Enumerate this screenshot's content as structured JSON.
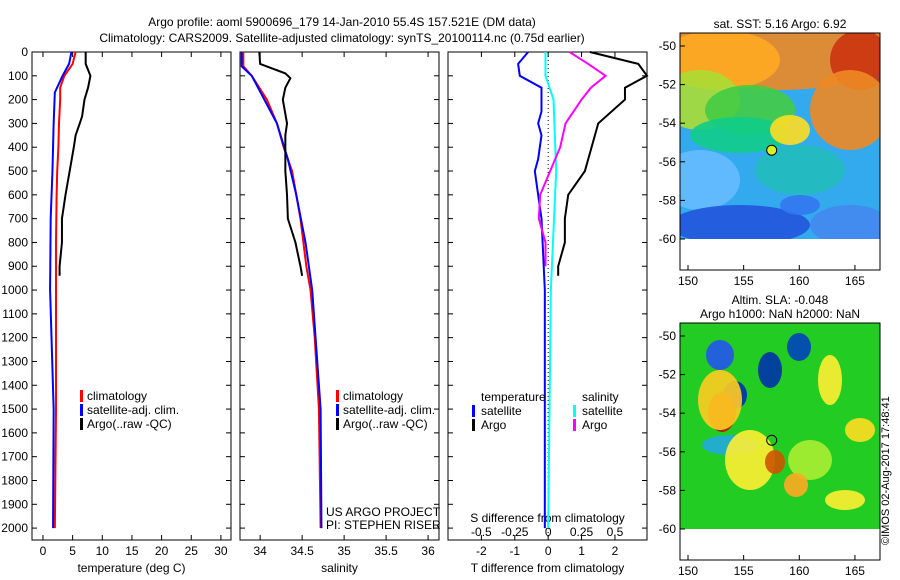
{
  "title": [
    "Argo profile: aoml 5900696_179 14-Jan-2010 55.4S 157.521E (DM data)",
    "Climatology: CARS2009. Satellite-adjusted climatology: synTS_20100114.nc (0.75d earlier)"
  ],
  "colors": {
    "clim": "#ff0000",
    "sat": "#0000ff",
    "argo": "#000000",
    "sal_sat": "#00ffff",
    "sal_argo": "#ff00ff"
  },
  "chart_data": [
    {
      "type": "line",
      "id": "temp",
      "xlabel": "temperature (deg C)",
      "xlim": [
        -1.85,
        31.7
      ],
      "ylim": [
        0,
        2050
      ],
      "xticks": [
        0,
        5,
        10,
        15,
        20,
        25,
        30
      ],
      "yticks": [
        0,
        100,
        200,
        300,
        400,
        500,
        600,
        700,
        800,
        900,
        1000,
        1100,
        1200,
        1300,
        1400,
        1500,
        1600,
        1700,
        1800,
        1900,
        2000
      ],
      "legend": [
        "climatology",
        "satellite-adj. clim.",
        "Argo(..raw -QC)"
      ],
      "series": [
        {
          "name": "climatology",
          "color": "clim",
          "depth": [
            0,
            50,
            100,
            150,
            200,
            300,
            400,
            500,
            600,
            800,
            1000,
            1500,
            2000
          ],
          "values": [
            5.5,
            5.0,
            3.6,
            2.9,
            2.9,
            2.7,
            2.6,
            2.4,
            2.3,
            2.2,
            2.2,
            2.2,
            2.0
          ]
        },
        {
          "name": "satellite-adj. clim.",
          "color": "sat",
          "depth": [
            0,
            50,
            100,
            170,
            300,
            500,
            700,
            1000,
            1500,
            2000
          ],
          "values": [
            4.8,
            4.4,
            3.3,
            2.0,
            1.8,
            1.6,
            1.3,
            1.2,
            1.8,
            1.7
          ]
        },
        {
          "name": "Argo(..raw -QC)",
          "color": "argo",
          "depth": [
            0,
            50,
            100,
            150,
            200,
            270,
            300,
            350,
            400,
            500,
            600,
            650,
            700,
            800,
            900,
            940
          ],
          "values": [
            7.2,
            7.2,
            8.0,
            7.6,
            7.0,
            6.6,
            6.2,
            5.5,
            5.2,
            4.5,
            3.8,
            3.5,
            3.2,
            3.2,
            2.8,
            2.8
          ]
        }
      ]
    },
    {
      "type": "line",
      "id": "sal",
      "xlabel": "salinity",
      "xlim": [
        33.76,
        36.13
      ],
      "ylim": [
        0,
        2050
      ],
      "xticks": [
        34,
        34.5,
        35,
        35.5,
        36
      ],
      "legend": [
        "climatology",
        "satellite-adj. clim.",
        "Argo(..raw -QC)"
      ],
      "annotation": [
        "US ARGO PROJECT",
        "PI: STEPHEN RISER"
      ],
      "series": [
        {
          "name": "climatology",
          "color": "clim",
          "depth": [
            0,
            60,
            100,
            200,
            300,
            400,
            500,
            700,
            900,
            1000,
            1200,
            1500,
            2000
          ],
          "values": [
            33.8,
            33.8,
            33.9,
            34.08,
            34.2,
            34.28,
            34.38,
            34.48,
            34.55,
            34.6,
            34.65,
            34.7,
            34.72
          ]
        },
        {
          "name": "satellite-adj. clim.",
          "color": "sat",
          "depth": [
            0,
            60,
            100,
            200,
            300,
            450,
            600,
            800,
            1000,
            1500,
            2000
          ],
          "values": [
            33.78,
            33.78,
            33.9,
            34.05,
            34.2,
            34.33,
            34.43,
            34.54,
            34.62,
            34.72,
            34.73
          ]
        },
        {
          "name": "Argo",
          "color": "argo",
          "depth": [
            0,
            50,
            90,
            110,
            150,
            200,
            300,
            350,
            400,
            500,
            600,
            700,
            800,
            900,
            940
          ],
          "values": [
            33.99,
            34.0,
            34.3,
            34.36,
            34.3,
            34.27,
            34.32,
            34.3,
            34.3,
            34.3,
            34.32,
            34.33,
            34.42,
            34.48,
            34.5
          ]
        }
      ]
    },
    {
      "type": "line",
      "id": "diff",
      "xlabel": "T difference from climatology",
      "x2label": "S difference from climatology",
      "xlim": [
        -3,
        2.96
      ],
      "ylim": [
        0,
        2050
      ],
      "xticks": [
        -2,
        -1,
        0,
        1,
        2
      ],
      "x2ticks": [
        "-0.5",
        "-0.25",
        "0",
        "0.25",
        "0.5"
      ],
      "x2scale": 4,
      "legend": {
        "temperature": "temperature",
        "salinity": "salinity",
        "items": [
          "satellite",
          "Argo",
          "satellite",
          "Argo"
        ]
      },
      "series": [
        {
          "name": "T satellite",
          "color": "sat",
          "depth": [
            0,
            50,
            100,
            150,
            250,
            300,
            350,
            450,
            500,
            700,
            1000,
            2000
          ],
          "values": [
            -0.6,
            -0.9,
            -0.85,
            -0.2,
            -0.2,
            -0.3,
            -0.2,
            -0.3,
            -0.4,
            -0.2,
            -0.1,
            -0.1
          ]
        },
        {
          "name": "T Argo",
          "color": "argo",
          "depth": [
            0,
            50,
            100,
            150,
            200,
            300,
            400,
            500,
            600,
            700,
            800,
            900,
            940
          ],
          "values": [
            1.25,
            2.7,
            3.2,
            2.3,
            2.3,
            1.5,
            1.3,
            1.1,
            0.6,
            0.5,
            0.5,
            0.3,
            0.3
          ]
        },
        {
          "name": "S satellite",
          "color": "sal_sat",
          "scale": 4,
          "depth": [
            0,
            100,
            200,
            500,
            1000,
            2000
          ],
          "values": [
            -0.02,
            -0.02,
            0.04,
            0.06,
            0.02,
            0.0
          ]
        },
        {
          "name": "S Argo",
          "color": "sal_argo",
          "scale": 4,
          "depth": [
            0,
            50,
            100,
            150,
            200,
            300,
            400,
            500,
            600,
            700,
            800,
            900
          ],
          "values": [
            0.16,
            0.3,
            0.43,
            0.32,
            0.25,
            0.13,
            0.09,
            0.015,
            -0.06,
            -0.07,
            -0.02,
            -0.02
          ]
        }
      ]
    }
  ],
  "maps": [
    {
      "title": [
        "sat. SST: 5.16 Argo: 6.92"
      ],
      "yticks": [
        -50,
        -52,
        -54,
        -56,
        -58,
        -60
      ],
      "xticks": [
        150,
        155,
        160,
        165
      ]
    },
    {
      "title": [
        "Altim. SLA: -0.048",
        "Argo h1000: NaN h2000: NaN"
      ],
      "yticks": [
        -50,
        -52,
        -54,
        -56,
        -58,
        -60
      ],
      "xticks": [
        150,
        155,
        160,
        165
      ]
    }
  ],
  "credit": "©IMOS 02-Aug-2017 17:48:41"
}
